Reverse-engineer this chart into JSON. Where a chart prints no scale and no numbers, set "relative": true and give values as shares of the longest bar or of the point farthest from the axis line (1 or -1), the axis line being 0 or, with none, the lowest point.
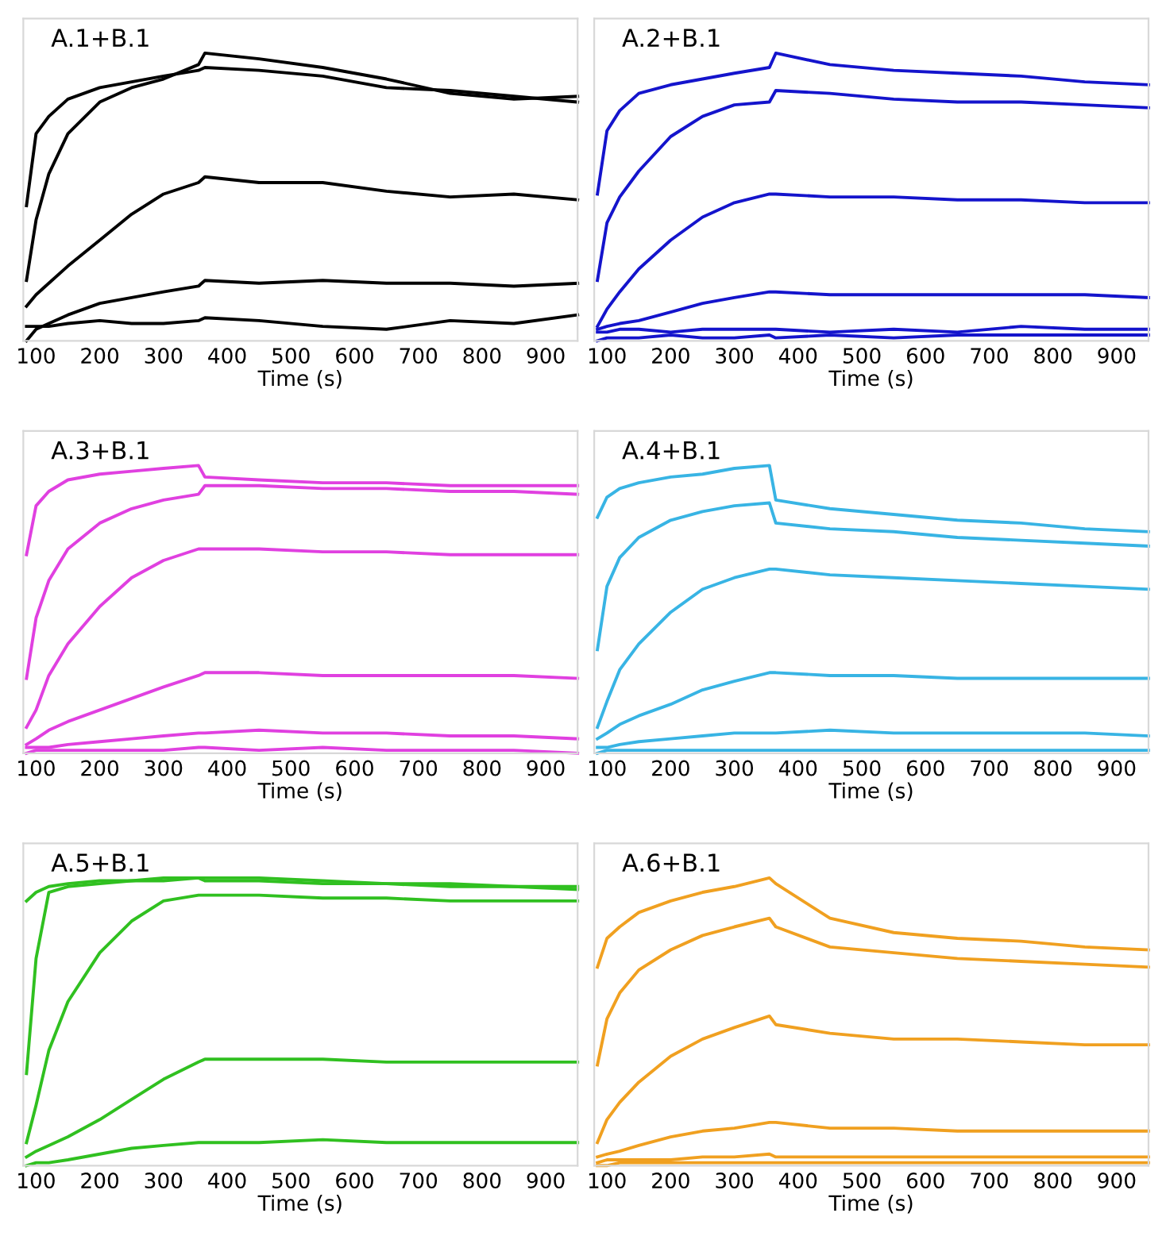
{
  "chart_data": [
    {
      "type": "line",
      "title": "A.1+B.1",
      "xlabel": "Time (s)",
      "relative": true,
      "xlim": [
        80,
        950
      ],
      "xticks": [
        100,
        200,
        300,
        400,
        500,
        600,
        700,
        800,
        900
      ],
      "x": [
        85,
        100,
        120,
        150,
        200,
        250,
        300,
        355,
        365,
        450,
        550,
        650,
        750,
        850,
        950
      ],
      "series": [
        {
          "color": "#000000",
          "values": [
            0.47,
            0.72,
            0.78,
            0.84,
            0.88,
            0.9,
            0.92,
            0.94,
            0.95,
            0.94,
            0.92,
            0.88,
            0.87,
            0.85,
            0.83
          ]
        },
        {
          "color": "#000000",
          "values": [
            0.21,
            0.42,
            0.58,
            0.72,
            0.83,
            0.88,
            0.91,
            0.96,
            1.0,
            0.98,
            0.95,
            0.91,
            0.86,
            0.84,
            0.85
          ]
        },
        {
          "color": "#000000",
          "values": [
            0.12,
            0.16,
            0.2,
            0.26,
            0.35,
            0.44,
            0.51,
            0.55,
            0.57,
            0.55,
            0.55,
            0.52,
            0.5,
            0.51,
            0.49
          ]
        },
        {
          "color": "#000000",
          "values": [
            0,
            0.04,
            0.06,
            0.09,
            0.13,
            0.15,
            0.17,
            0.19,
            0.21,
            0.2,
            0.21,
            0.2,
            0.2,
            0.19,
            0.2
          ]
        },
        {
          "color": "#000000",
          "values": [
            0.05,
            0.05,
            0.05,
            0.06,
            0.07,
            0.06,
            0.06,
            0.07,
            0.08,
            0.07,
            0.05,
            0.04,
            0.07,
            0.06,
            0.09
          ]
        }
      ]
    },
    {
      "type": "line",
      "title": "A.2+B.1",
      "xlabel": "Time (s)",
      "relative": true,
      "xlim": [
        80,
        950
      ],
      "xticks": [
        100,
        200,
        300,
        400,
        500,
        600,
        700,
        800,
        900
      ],
      "x": [
        85,
        100,
        120,
        150,
        200,
        250,
        300,
        355,
        365,
        450,
        550,
        650,
        750,
        850,
        950
      ],
      "series": [
        {
          "color": "#1414cc",
          "values": [
            0.51,
            0.73,
            0.8,
            0.86,
            0.89,
            0.91,
            0.93,
            0.95,
            1.0,
            0.96,
            0.94,
            0.93,
            0.92,
            0.9,
            0.89
          ]
        },
        {
          "color": "#1414cc",
          "values": [
            0.21,
            0.41,
            0.5,
            0.59,
            0.71,
            0.78,
            0.82,
            0.83,
            0.87,
            0.86,
            0.84,
            0.83,
            0.83,
            0.82,
            0.81
          ]
        },
        {
          "color": "#1414cc",
          "values": [
            0.05,
            0.11,
            0.17,
            0.25,
            0.35,
            0.43,
            0.48,
            0.51,
            0.51,
            0.5,
            0.5,
            0.49,
            0.49,
            0.48,
            0.48
          ]
        },
        {
          "color": "#1414cc",
          "values": [
            0.04,
            0.05,
            0.06,
            0.07,
            0.1,
            0.13,
            0.15,
            0.17,
            0.17,
            0.16,
            0.16,
            0.16,
            0.16,
            0.16,
            0.15
          ]
        },
        {
          "color": "#1414cc",
          "values": [
            0.03,
            0.03,
            0.04,
            0.04,
            0.03,
            0.04,
            0.04,
            0.04,
            0.04,
            0.03,
            0.04,
            0.03,
            0.05,
            0.04,
            0.04
          ]
        },
        {
          "color": "#1414cc",
          "values": [
            0,
            0.01,
            0.01,
            0.01,
            0.02,
            0.01,
            0.01,
            0.02,
            0.01,
            0.02,
            0.01,
            0.02,
            0.02,
            0.02,
            0.02
          ]
        }
      ]
    },
    {
      "type": "line",
      "title": "A.3+B.1",
      "xlabel": "Time (s)",
      "relative": true,
      "xlim": [
        80,
        950
      ],
      "xticks": [
        100,
        200,
        300,
        400,
        500,
        600,
        700,
        800,
        900
      ],
      "x": [
        85,
        100,
        120,
        150,
        200,
        250,
        300,
        355,
        365,
        450,
        550,
        650,
        750,
        850,
        950
      ],
      "series": [
        {
          "color": "#e040e0",
          "values": [
            0.69,
            0.86,
            0.91,
            0.95,
            0.97,
            0.98,
            0.99,
            1.0,
            0.96,
            0.95,
            0.94,
            0.94,
            0.93,
            0.93,
            0.93
          ]
        },
        {
          "color": "#e040e0",
          "values": [
            0.26,
            0.47,
            0.6,
            0.71,
            0.8,
            0.85,
            0.88,
            0.9,
            0.93,
            0.93,
            0.92,
            0.92,
            0.91,
            0.91,
            0.9
          ]
        },
        {
          "color": "#e040e0",
          "values": [
            0.09,
            0.15,
            0.27,
            0.38,
            0.51,
            0.61,
            0.67,
            0.71,
            0.71,
            0.71,
            0.7,
            0.7,
            0.69,
            0.69,
            0.69
          ]
        },
        {
          "color": "#e040e0",
          "values": [
            0.03,
            0.05,
            0.08,
            0.11,
            0.15,
            0.19,
            0.23,
            0.27,
            0.28,
            0.28,
            0.27,
            0.27,
            0.27,
            0.27,
            0.26
          ]
        },
        {
          "color": "#e040e0",
          "values": [
            0.02,
            0.02,
            0.02,
            0.03,
            0.04,
            0.05,
            0.06,
            0.07,
            0.07,
            0.08,
            0.07,
            0.07,
            0.06,
            0.06,
            0.05
          ]
        },
        {
          "color": "#e040e0",
          "values": [
            0,
            0.01,
            0.01,
            0.01,
            0.01,
            0.01,
            0.01,
            0.02,
            0.02,
            0.01,
            0.02,
            0.01,
            0.01,
            0.01,
            0.0
          ]
        }
      ]
    },
    {
      "type": "line",
      "title": "A.4+B.1",
      "xlabel": "Time (s)",
      "relative": true,
      "xlim": [
        80,
        950
      ],
      "xticks": [
        100,
        200,
        300,
        400,
        500,
        600,
        700,
        800,
        900
      ],
      "x": [
        85,
        100,
        120,
        150,
        200,
        250,
        300,
        355,
        365,
        450,
        550,
        650,
        750,
        850,
        950
      ],
      "series": [
        {
          "color": "#38b4e4",
          "values": [
            0.82,
            0.89,
            0.92,
            0.94,
            0.96,
            0.97,
            0.99,
            1.0,
            0.88,
            0.85,
            0.83,
            0.81,
            0.8,
            0.78,
            0.77
          ]
        },
        {
          "color": "#38b4e4",
          "values": [
            0.36,
            0.58,
            0.68,
            0.75,
            0.81,
            0.84,
            0.86,
            0.87,
            0.8,
            0.78,
            0.77,
            0.75,
            0.74,
            0.73,
            0.72
          ]
        },
        {
          "color": "#38b4e4",
          "values": [
            0.09,
            0.18,
            0.29,
            0.38,
            0.49,
            0.57,
            0.61,
            0.64,
            0.64,
            0.62,
            0.61,
            0.6,
            0.59,
            0.58,
            0.57
          ]
        },
        {
          "color": "#38b4e4",
          "values": [
            0.05,
            0.07,
            0.1,
            0.13,
            0.17,
            0.22,
            0.25,
            0.28,
            0.28,
            0.27,
            0.27,
            0.26,
            0.26,
            0.26,
            0.26
          ]
        },
        {
          "color": "#38b4e4",
          "values": [
            0.02,
            0.02,
            0.03,
            0.04,
            0.05,
            0.06,
            0.07,
            0.07,
            0.07,
            0.08,
            0.07,
            0.07,
            0.07,
            0.07,
            0.06
          ]
        },
        {
          "color": "#38b4e4",
          "values": [
            0,
            0.01,
            0.01,
            0.01,
            0.01,
            0.01,
            0.01,
            0.01,
            0.01,
            0.01,
            0.01,
            0.01,
            0.01,
            0.01,
            0.01
          ]
        }
      ]
    },
    {
      "type": "line",
      "title": "A.5+B.1",
      "xlabel": "Time (s)",
      "relative": true,
      "xlim": [
        80,
        950
      ],
      "xticks": [
        100,
        200,
        300,
        400,
        500,
        600,
        700,
        800,
        900
      ],
      "x": [
        85,
        100,
        120,
        150,
        200,
        250,
        300,
        355,
        365,
        450,
        550,
        650,
        750,
        850,
        950
      ],
      "series": [
        {
          "color": "#30c020",
          "values": [
            0.92,
            0.95,
            0.97,
            0.98,
            0.99,
            0.99,
            1.0,
            1.0,
            1.0,
            1.0,
            0.99,
            0.98,
            0.98,
            0.97,
            0.97
          ]
        },
        {
          "color": "#30c020",
          "values": [
            0.32,
            0.72,
            0.95,
            0.97,
            0.98,
            0.99,
            0.99,
            1.0,
            0.99,
            0.99,
            0.98,
            0.98,
            0.97,
            0.97,
            0.96
          ]
        },
        {
          "color": "#30c020",
          "values": [
            0.08,
            0.21,
            0.4,
            0.57,
            0.74,
            0.85,
            0.92,
            0.94,
            0.94,
            0.94,
            0.93,
            0.93,
            0.92,
            0.92,
            0.92
          ]
        },
        {
          "color": "#30c020",
          "values": [
            0.03,
            0.05,
            0.07,
            0.1,
            0.16,
            0.23,
            0.3,
            0.36,
            0.37,
            0.37,
            0.37,
            0.36,
            0.36,
            0.36,
            0.36
          ]
        },
        {
          "color": "#30c020",
          "values": [
            0,
            0.01,
            0.01,
            0.02,
            0.04,
            0.06,
            0.07,
            0.08,
            0.08,
            0.08,
            0.09,
            0.08,
            0.08,
            0.08,
            0.08
          ]
        }
      ]
    },
    {
      "type": "line",
      "title": "A.6+B.1",
      "xlabel": "Time (s)",
      "relative": true,
      "xlim": [
        80,
        950
      ],
      "xticks": [
        100,
        200,
        300,
        400,
        500,
        600,
        700,
        800,
        900
      ],
      "x": [
        85,
        100,
        120,
        150,
        200,
        250,
        300,
        355,
        365,
        450,
        550,
        650,
        750,
        850,
        950
      ],
      "series": [
        {
          "color": "#f0a020",
          "values": [
            0.69,
            0.79,
            0.83,
            0.88,
            0.92,
            0.95,
            0.97,
            1.0,
            0.98,
            0.86,
            0.81,
            0.79,
            0.78,
            0.76,
            0.75
          ]
        },
        {
          "color": "#f0a020",
          "values": [
            0.35,
            0.51,
            0.6,
            0.68,
            0.75,
            0.8,
            0.83,
            0.86,
            0.83,
            0.76,
            0.74,
            0.72,
            0.71,
            0.7,
            0.69
          ]
        },
        {
          "color": "#f0a020",
          "values": [
            0.08,
            0.16,
            0.22,
            0.29,
            0.38,
            0.44,
            0.48,
            0.52,
            0.49,
            0.46,
            0.44,
            0.44,
            0.43,
            0.42,
            0.42
          ]
        },
        {
          "color": "#f0a020",
          "values": [
            0.03,
            0.04,
            0.05,
            0.07,
            0.1,
            0.12,
            0.13,
            0.15,
            0.15,
            0.13,
            0.13,
            0.12,
            0.12,
            0.12,
            0.12
          ]
        },
        {
          "color": "#f0a020",
          "values": [
            0.01,
            0.02,
            0.02,
            0.02,
            0.02,
            0.03,
            0.03,
            0.04,
            0.03,
            0.03,
            0.03,
            0.03,
            0.03,
            0.03,
            0.03
          ]
        },
        {
          "color": "#f0a020",
          "values": [
            0,
            0,
            0.01,
            0.01,
            0.01,
            0.01,
            0.01,
            0.01,
            0.01,
            0.01,
            0.01,
            0.01,
            0.01,
            0.01,
            0.01
          ]
        }
      ]
    }
  ]
}
